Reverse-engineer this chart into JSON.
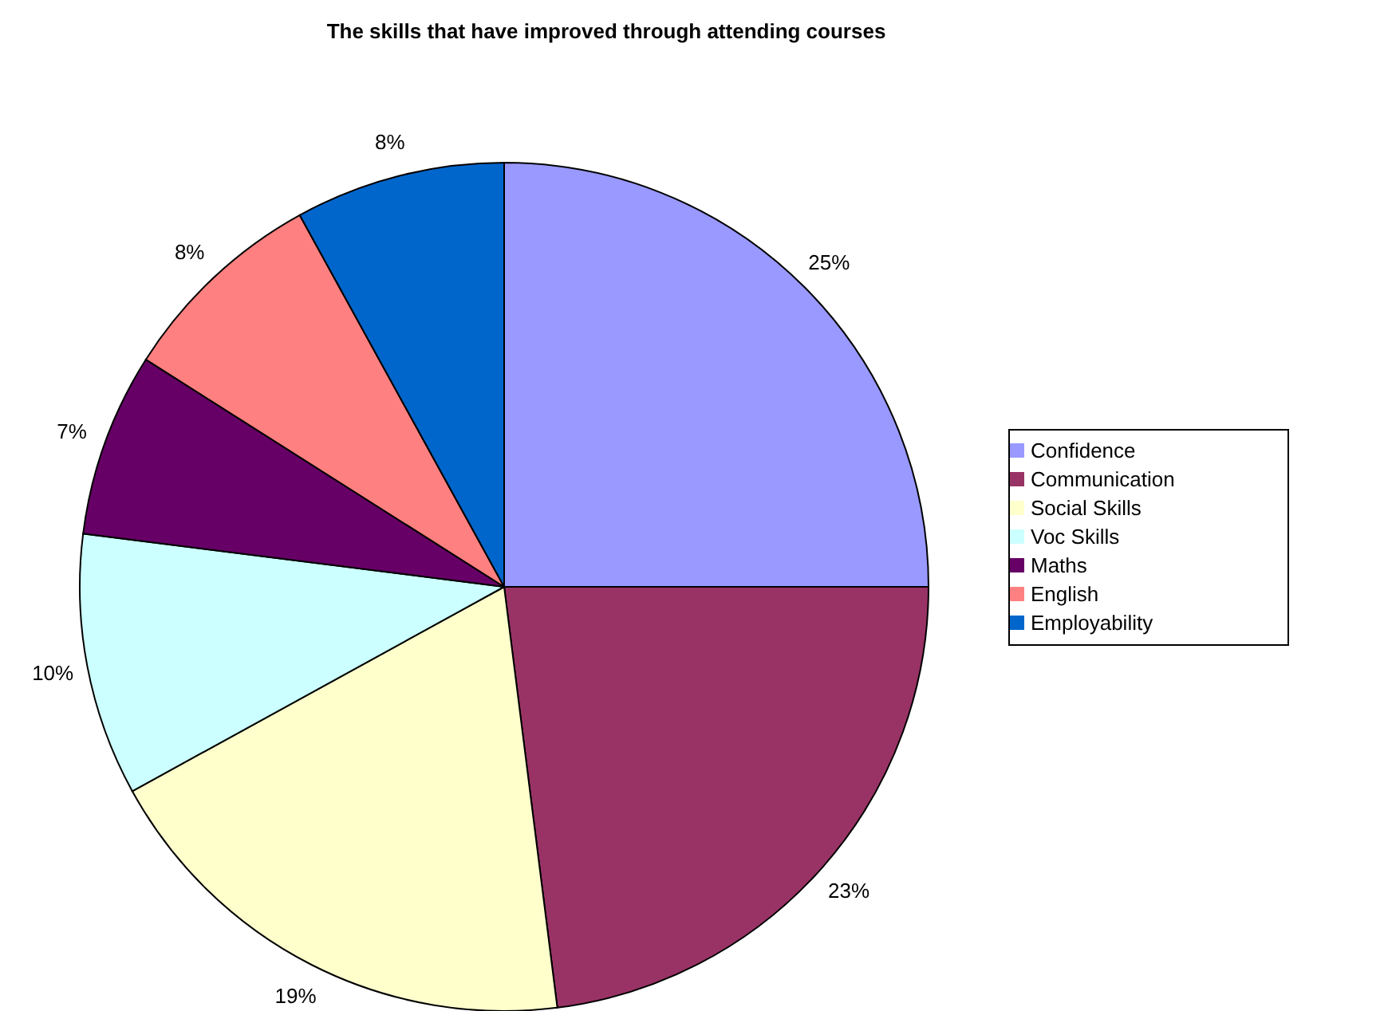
{
  "chart_data": {
    "type": "pie",
    "title": "The skills that have improved through attending courses",
    "categories": [
      "Confidence",
      "Communication",
      "Social Skills",
      "Voc Skills",
      "Maths",
      "English",
      "Employability"
    ],
    "values": [
      25,
      23,
      19,
      10,
      7,
      8,
      8
    ],
    "value_labels": [
      "25%",
      "23%",
      "19%",
      "10%",
      "7%",
      "8%",
      "8%"
    ],
    "colors": [
      "#9999ff",
      "#993366",
      "#ffffcc",
      "#ccffff",
      "#660066",
      "#ff8080",
      "#0066cc"
    ],
    "legend": "right"
  }
}
